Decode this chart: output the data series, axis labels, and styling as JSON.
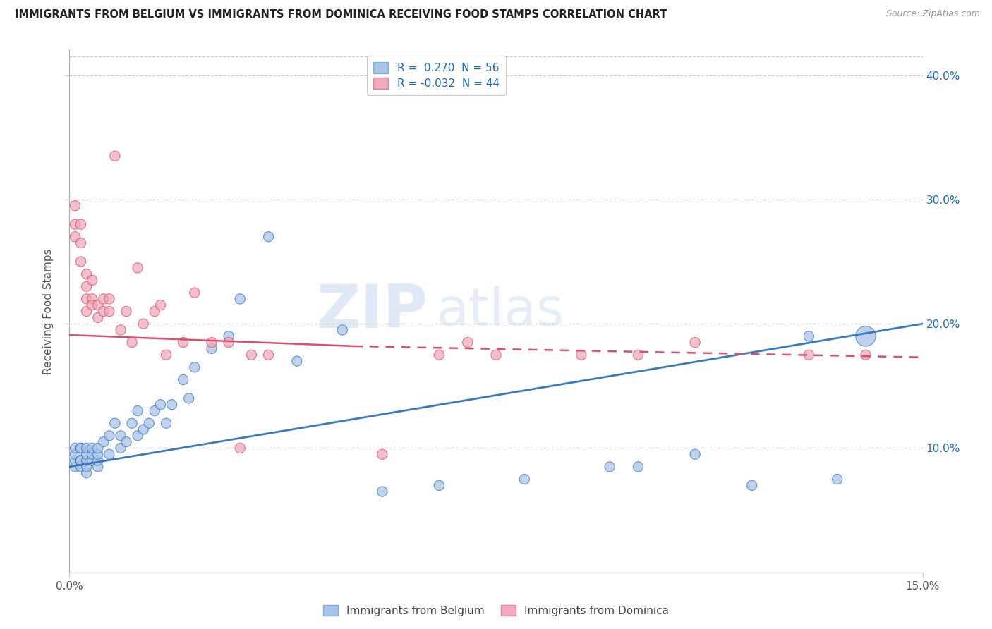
{
  "title": "IMMIGRANTS FROM BELGIUM VS IMMIGRANTS FROM DOMINICA RECEIVING FOOD STAMPS CORRELATION CHART",
  "source": "Source: ZipAtlas.com",
  "ylabel": "Receiving Food Stamps",
  "yticks": [
    "10.0%",
    "20.0%",
    "30.0%",
    "40.0%"
  ],
  "ytick_vals": [
    0.1,
    0.2,
    0.3,
    0.4
  ],
  "legend_belgium_r": "0.270",
  "legend_belgium_n": "56",
  "legend_dominica_r": "-0.032",
  "legend_dominica_n": "44",
  "color_belgium": "#aac4e8",
  "color_dominica": "#f0aabb",
  "color_belgium_line": "#3a7abf",
  "color_dominica_line": "#d9506a",
  "color_legend_text": "#1a6abf",
  "watermark_zip": "ZIP",
  "watermark_atlas": "atlas",
  "belgium_x": [
    0.001,
    0.001,
    0.001,
    0.001,
    0.002,
    0.002,
    0.002,
    0.002,
    0.002,
    0.003,
    0.003,
    0.003,
    0.003,
    0.003,
    0.004,
    0.004,
    0.004,
    0.005,
    0.005,
    0.005,
    0.005,
    0.006,
    0.007,
    0.007,
    0.008,
    0.009,
    0.009,
    0.01,
    0.011,
    0.012,
    0.012,
    0.013,
    0.014,
    0.015,
    0.016,
    0.017,
    0.018,
    0.02,
    0.021,
    0.022,
    0.025,
    0.028,
    0.03,
    0.035,
    0.04,
    0.048,
    0.055,
    0.065,
    0.08,
    0.095,
    0.1,
    0.11,
    0.12,
    0.13,
    0.135,
    0.14
  ],
  "belgium_y": [
    0.085,
    0.09,
    0.095,
    0.1,
    0.085,
    0.09,
    0.09,
    0.1,
    0.1,
    0.08,
    0.085,
    0.09,
    0.095,
    0.1,
    0.09,
    0.095,
    0.1,
    0.085,
    0.09,
    0.095,
    0.1,
    0.105,
    0.095,
    0.11,
    0.12,
    0.1,
    0.11,
    0.105,
    0.12,
    0.11,
    0.13,
    0.115,
    0.12,
    0.13,
    0.135,
    0.12,
    0.135,
    0.155,
    0.14,
    0.165,
    0.18,
    0.19,
    0.22,
    0.27,
    0.17,
    0.195,
    0.065,
    0.07,
    0.075,
    0.085,
    0.085,
    0.095,
    0.07,
    0.19,
    0.075,
    0.19
  ],
  "belgium_size": [
    30,
    30,
    30,
    30,
    30,
    30,
    30,
    30,
    30,
    30,
    30,
    30,
    30,
    30,
    30,
    30,
    30,
    30,
    30,
    30,
    30,
    30,
    30,
    30,
    30,
    30,
    30,
    30,
    30,
    30,
    30,
    30,
    30,
    30,
    30,
    30,
    30,
    30,
    30,
    30,
    30,
    30,
    30,
    30,
    30,
    30,
    30,
    30,
    30,
    30,
    30,
    30,
    30,
    30,
    30,
    120
  ],
  "dominica_x": [
    0.001,
    0.001,
    0.001,
    0.002,
    0.002,
    0.002,
    0.003,
    0.003,
    0.003,
    0.003,
    0.004,
    0.004,
    0.004,
    0.005,
    0.005,
    0.006,
    0.006,
    0.007,
    0.007,
    0.008,
    0.009,
    0.01,
    0.011,
    0.012,
    0.013,
    0.015,
    0.016,
    0.017,
    0.02,
    0.022,
    0.025,
    0.028,
    0.03,
    0.032,
    0.035,
    0.055,
    0.065,
    0.07,
    0.075,
    0.09,
    0.1,
    0.11,
    0.13,
    0.14
  ],
  "dominica_y": [
    0.295,
    0.28,
    0.27,
    0.28,
    0.265,
    0.25,
    0.24,
    0.23,
    0.22,
    0.21,
    0.235,
    0.22,
    0.215,
    0.205,
    0.215,
    0.22,
    0.21,
    0.22,
    0.21,
    0.335,
    0.195,
    0.21,
    0.185,
    0.245,
    0.2,
    0.21,
    0.215,
    0.175,
    0.185,
    0.225,
    0.185,
    0.185,
    0.1,
    0.175,
    0.175,
    0.095,
    0.175,
    0.185,
    0.175,
    0.175,
    0.175,
    0.185,
    0.175,
    0.175
  ],
  "dominica_size": [
    30,
    30,
    30,
    30,
    30,
    30,
    30,
    30,
    30,
    30,
    30,
    30,
    30,
    30,
    30,
    30,
    30,
    30,
    30,
    30,
    30,
    30,
    30,
    30,
    30,
    30,
    30,
    30,
    30,
    30,
    30,
    30,
    30,
    30,
    30,
    30,
    30,
    30,
    30,
    30,
    30,
    30,
    30,
    30
  ],
  "xmin": 0.0,
  "xmax": 0.15,
  "ymin": 0.0,
  "ymax": 0.42,
  "grid_color": "#cccccc",
  "background_color": "#ffffff"
}
